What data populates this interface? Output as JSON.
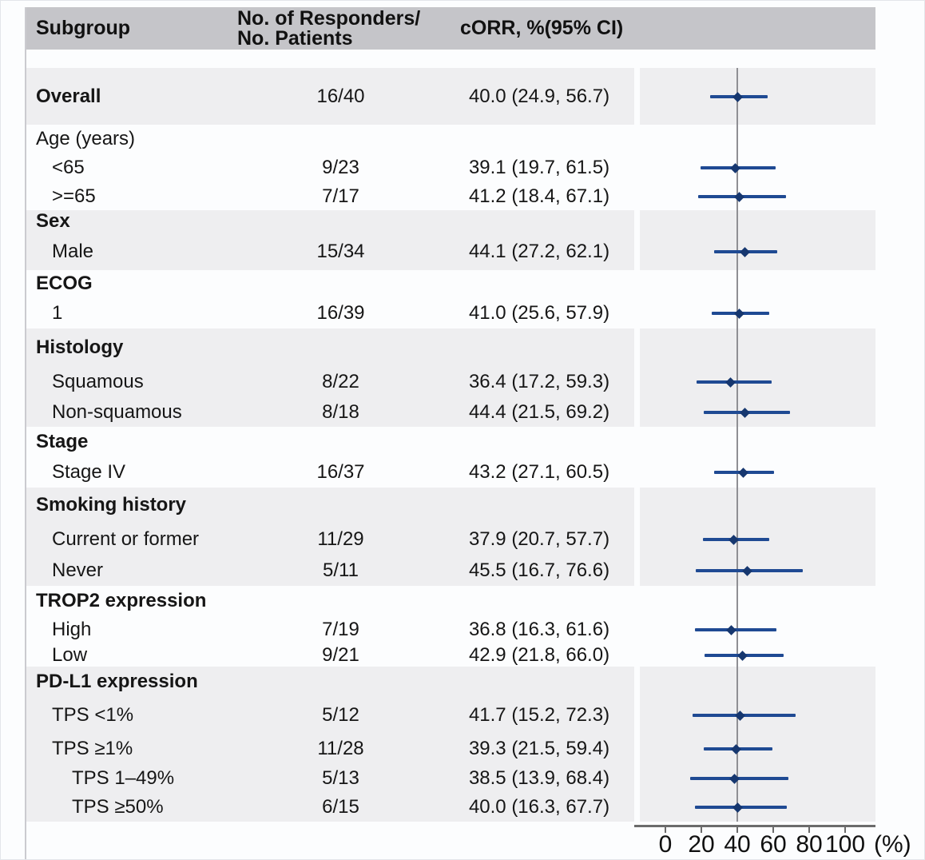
{
  "figure": {
    "header": {
      "subgroup": "Subgroup",
      "responders_line1": "No. of Responders/",
      "responders_line2": "No. Patients",
      "corr": "cORR, %(95% CI)"
    },
    "axis": {
      "min": 0,
      "max": 100,
      "ticks": [
        0,
        20,
        40,
        60,
        80,
        100
      ],
      "unit_label": "(%)",
      "reference_value": 40
    },
    "colors": {
      "header_bg": "#c5c5c9",
      "shaded_band_bg": "#eeeef0",
      "canvas_bg": "#fcfdfe",
      "ci_line": "#1f4a93",
      "point_marker": "#16376f",
      "reference_line": "#8f8f94",
      "axis_line": "#6b6b6b",
      "text": "#161616"
    },
    "sections": [
      {
        "shaded": true,
        "rows": [
          {
            "label": "Overall",
            "bold": true,
            "indent": 0,
            "responders": "16/40",
            "corr": "40.0 (24.9, 56.7)",
            "est": 40.0,
            "lo": 24.9,
            "hi": 56.7
          }
        ]
      },
      {
        "shaded": false,
        "rows": [
          {
            "label": "Age (years)",
            "bold": false,
            "indent": 0
          },
          {
            "label": "<65",
            "bold": false,
            "indent": 1,
            "responders": "9/23",
            "corr": "39.1 (19.7, 61.5)",
            "est": 39.1,
            "lo": 19.7,
            "hi": 61.5
          },
          {
            "label": ">=65",
            "bold": false,
            "indent": 1,
            "responders": "7/17",
            "corr": "41.2 (18.4, 67.1)",
            "est": 41.2,
            "lo": 18.4,
            "hi": 67.1
          }
        ]
      },
      {
        "shaded": true,
        "rows": [
          {
            "label": "Sex",
            "bold": true,
            "indent": 0
          },
          {
            "label": "Male",
            "bold": false,
            "indent": 1,
            "responders": "15/34",
            "corr": "44.1 (27.2, 62.1)",
            "est": 44.1,
            "lo": 27.2,
            "hi": 62.1
          }
        ]
      },
      {
        "shaded": false,
        "rows": [
          {
            "label": "ECOG",
            "bold": true,
            "indent": 0
          },
          {
            "label": "1",
            "bold": false,
            "indent": 1,
            "responders": "16/39",
            "corr": "41.0 (25.6, 57.9)",
            "est": 41.0,
            "lo": 25.6,
            "hi": 57.9
          }
        ]
      },
      {
        "shaded": true,
        "rows": [
          {
            "label": "Histology",
            "bold": true,
            "indent": 0
          },
          {
            "label": "Squamous",
            "bold": false,
            "indent": 1,
            "responders": "8/22",
            "corr": "36.4 (17.2, 59.3)",
            "est": 36.4,
            "lo": 17.2,
            "hi": 59.3
          },
          {
            "label": "Non-squamous",
            "bold": false,
            "indent": 1,
            "responders": "8/18",
            "corr": "44.4 (21.5, 69.2)",
            "est": 44.4,
            "lo": 21.5,
            "hi": 69.2
          }
        ]
      },
      {
        "shaded": false,
        "rows": [
          {
            "label": "Stage",
            "bold": true,
            "indent": 0
          },
          {
            "label": "Stage IV",
            "bold": false,
            "indent": 1,
            "responders": "16/37",
            "corr": "43.2 (27.1, 60.5)",
            "est": 43.2,
            "lo": 27.1,
            "hi": 60.5
          }
        ]
      },
      {
        "shaded": true,
        "rows": [
          {
            "label": "Smoking history",
            "bold": true,
            "indent": 0
          },
          {
            "label": "Current or former",
            "bold": false,
            "indent": 1,
            "responders": "11/29",
            "corr": "37.9 (20.7, 57.7)",
            "est": 37.9,
            "lo": 20.7,
            "hi": 57.7
          },
          {
            "label": "Never",
            "bold": false,
            "indent": 1,
            "responders": "5/11",
            "corr": "45.5 (16.7, 76.6)",
            "est": 45.5,
            "lo": 16.7,
            "hi": 76.6
          }
        ]
      },
      {
        "shaded": false,
        "rows": [
          {
            "label": "TROP2 expression",
            "bold": true,
            "indent": 0
          },
          {
            "label": "High",
            "bold": false,
            "indent": 1,
            "responders": "7/19",
            "corr": "36.8 (16.3, 61.6)",
            "est": 36.8,
            "lo": 16.3,
            "hi": 61.6
          },
          {
            "label": "Low",
            "bold": false,
            "indent": 1,
            "responders": "9/21",
            "corr": "42.9 (21.8, 66.0)",
            "est": 42.9,
            "lo": 21.8,
            "hi": 66.0
          }
        ]
      },
      {
        "shaded": true,
        "rows": [
          {
            "label": "PD-L1 expression",
            "bold": true,
            "indent": 0
          },
          {
            "label": "TPS <1%",
            "bold": false,
            "indent": 1,
            "responders": "5/12",
            "corr": "41.7 (15.2, 72.3)",
            "est": 41.7,
            "lo": 15.2,
            "hi": 72.3
          },
          {
            "label": "TPS ≥1%",
            "bold": false,
            "indent": 1,
            "responders": "11/28",
            "corr": "39.3 (21.5, 59.4)",
            "est": 39.3,
            "lo": 21.5,
            "hi": 59.4
          },
          {
            "label": "TPS 1–49%",
            "bold": false,
            "indent": 2,
            "responders": "5/13",
            "corr": "38.5 (13.9, 68.4)",
            "est": 38.5,
            "lo": 13.9,
            "hi": 68.4
          },
          {
            "label": "TPS ≥50%",
            "bold": false,
            "indent": 2,
            "responders": "6/15",
            "corr": "40.0 (16.3, 67.7)",
            "est": 40.0,
            "lo": 16.3,
            "hi": 67.7
          }
        ]
      }
    ]
  },
  "chart_data": {
    "type": "scatter",
    "variant": "forest-plot",
    "title": "",
    "xlabel": "(%)",
    "ylabel": "",
    "xlim": [
      0,
      100
    ],
    "x_ticks": [
      0,
      20,
      40,
      60,
      80,
      100
    ],
    "reference_line_x": 40,
    "grid": false,
    "legend": "none",
    "columns": [
      "Subgroup",
      "No. of Responders/No. Patients",
      "cORR, %(95% CI)"
    ],
    "points": [
      {
        "group": "Overall",
        "label": "Overall",
        "responders": "16/40",
        "est": 40.0,
        "ci": [
          24.9,
          56.7
        ]
      },
      {
        "group": "Age (years)",
        "label": "<65",
        "responders": "9/23",
        "est": 39.1,
        "ci": [
          19.7,
          61.5
        ]
      },
      {
        "group": "Age (years)",
        "label": ">=65",
        "responders": "7/17",
        "est": 41.2,
        "ci": [
          18.4,
          67.1
        ]
      },
      {
        "group": "Sex",
        "label": "Male",
        "responders": "15/34",
        "est": 44.1,
        "ci": [
          27.2,
          62.1
        ]
      },
      {
        "group": "ECOG",
        "label": "1",
        "responders": "16/39",
        "est": 41.0,
        "ci": [
          25.6,
          57.9
        ]
      },
      {
        "group": "Histology",
        "label": "Squamous",
        "responders": "8/22",
        "est": 36.4,
        "ci": [
          17.2,
          59.3
        ]
      },
      {
        "group": "Histology",
        "label": "Non-squamous",
        "responders": "8/18",
        "est": 44.4,
        "ci": [
          21.5,
          69.2
        ]
      },
      {
        "group": "Stage",
        "label": "Stage IV",
        "responders": "16/37",
        "est": 43.2,
        "ci": [
          27.1,
          60.5
        ]
      },
      {
        "group": "Smoking history",
        "label": "Current or former",
        "responders": "11/29",
        "est": 37.9,
        "ci": [
          20.7,
          57.7
        ]
      },
      {
        "group": "Smoking history",
        "label": "Never",
        "responders": "5/11",
        "est": 45.5,
        "ci": [
          16.7,
          76.6
        ]
      },
      {
        "group": "TROP2 expression",
        "label": "High",
        "responders": "7/19",
        "est": 36.8,
        "ci": [
          16.3,
          61.6
        ]
      },
      {
        "group": "TROP2 expression",
        "label": "Low",
        "responders": "9/21",
        "est": 42.9,
        "ci": [
          21.8,
          66.0
        ]
      },
      {
        "group": "PD-L1 expression",
        "label": "TPS <1%",
        "responders": "5/12",
        "est": 41.7,
        "ci": [
          15.2,
          72.3
        ]
      },
      {
        "group": "PD-L1 expression",
        "label": "TPS ≥1%",
        "responders": "11/28",
        "est": 39.3,
        "ci": [
          21.5,
          59.4
        ]
      },
      {
        "group": "PD-L1 expression",
        "label": "TPS 1–49%",
        "responders": "5/13",
        "est": 38.5,
        "ci": [
          13.9,
          68.4
        ]
      },
      {
        "group": "PD-L1 expression",
        "label": "TPS ≥50%",
        "responders": "6/15",
        "est": 40.0,
        "ci": [
          16.3,
          67.7
        ]
      }
    ]
  }
}
